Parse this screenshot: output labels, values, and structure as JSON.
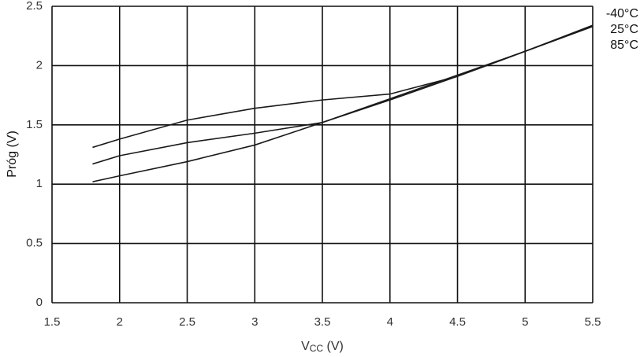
{
  "chart_data": {
    "type": "line",
    "ylabel": "Próg (V)",
    "xlabel": [
      "V",
      "CC",
      " (V)"
    ],
    "x": [
      1.8,
      2,
      2.5,
      3,
      3.5,
      4,
      4.5,
      5,
      5.5
    ],
    "series": [
      {
        "name": "-40°C",
        "color": "#1a1a1a",
        "values": [
          1.31,
          1.38,
          1.54,
          1.64,
          1.71,
          1.76,
          1.91,
          2.12,
          2.34
        ]
      },
      {
        "name": "25°C",
        "color": "#1a1a1a",
        "values": [
          1.17,
          1.24,
          1.35,
          1.43,
          1.52,
          1.72,
          1.92,
          2.12,
          2.33
        ]
      },
      {
        "name": "85°C",
        "color": "#1a1a1a",
        "values": [
          1.02,
          1.07,
          1.19,
          1.33,
          1.52,
          1.71,
          1.91,
          2.12,
          2.33
        ]
      }
    ],
    "xlim": [
      1.5,
      5.5
    ],
    "xticks": [
      1.5,
      2,
      2.5,
      3,
      3.5,
      4,
      4.5,
      5,
      5.5
    ],
    "ylim": [
      0,
      2.5
    ],
    "yticks": [
      0,
      0.5,
      1,
      1.5,
      2,
      2.5
    ],
    "grid": true
  }
}
